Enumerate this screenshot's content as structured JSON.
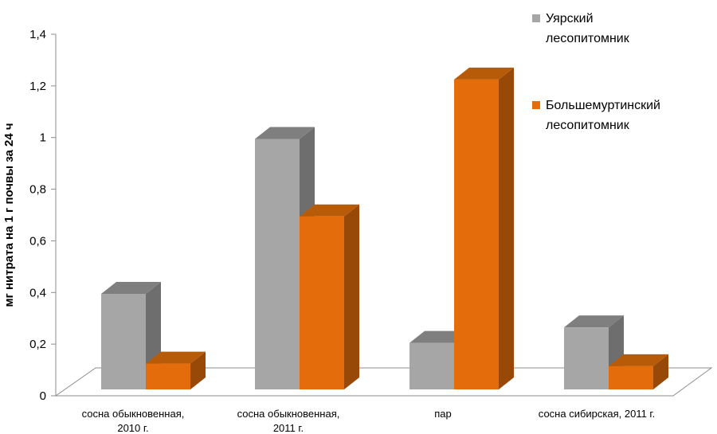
{
  "chart_data": {
    "type": "bar",
    "style": "3d-clustered-column",
    "title": "",
    "xlabel": "",
    "ylabel": "мг  нитрата на 1 г почвы за 24 ч",
    "ylim": [
      0,
      1.4
    ],
    "yticks": [
      "0",
      "0,2",
      "0,4",
      "0,6",
      "0,8",
      "1",
      "1,2",
      "1,4"
    ],
    "grid": false,
    "legend_position": "right",
    "categories": [
      [
        "сосна обыкновенная,",
        "2010 г."
      ],
      [
        "сосна обыкновенная,",
        "2011 г."
      ],
      [
        "пар"
      ],
      [
        "сосна сибирская, 2011 г."
      ]
    ],
    "series": [
      {
        "name": [
          "Уярский",
          "лесопитомник"
        ],
        "values": [
          0.37,
          0.97,
          0.18,
          0.24
        ],
        "color": "#a6a6a6",
        "side_color": "#6e6e6e",
        "top_color": "#7f7f7f"
      },
      {
        "name": [
          "Большемуртинский",
          "лесопитомник"
        ],
        "values": [
          0.1,
          0.67,
          1.2,
          0.09
        ],
        "color": "#e46c0a",
        "side_color": "#984807",
        "top_color": "#b85b08"
      }
    ]
  }
}
